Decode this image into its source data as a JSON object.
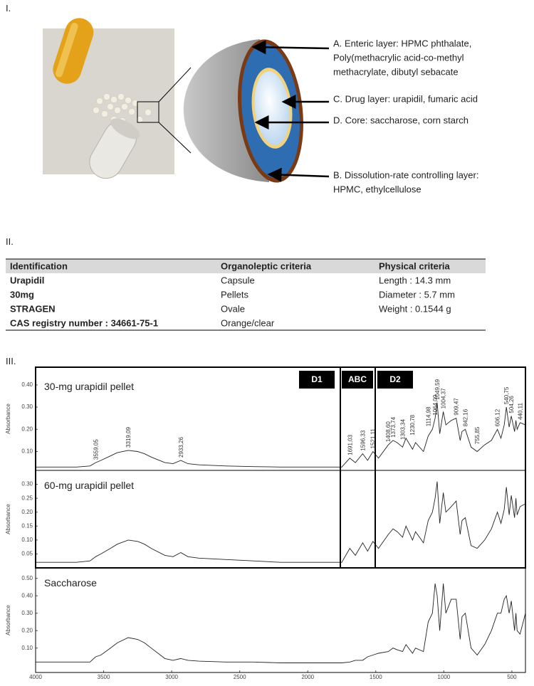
{
  "panel_labels": [
    "I.",
    "II.",
    "III."
  ],
  "diagram": {
    "annotations": [
      {
        "lines": [
          "A. Enteric layer: HPMC phthalate,",
          "Poly(methacrylic acid-co-methyl",
          "methacrylate, dibutyl sebacate"
        ]
      },
      {
        "lines": [
          "C. Drug layer: urapidil, fumaric acid"
        ]
      },
      {
        "lines": [
          "D. Core: saccharose, corn starch"
        ]
      },
      {
        "lines": [
          "B. Dissolution-rate controlling layer:",
          "HPMC, ethylcellulose"
        ]
      }
    ]
  },
  "table": {
    "header": [
      "Identification",
      "Organoleptic criteria",
      "Physical criteria"
    ],
    "rows": [
      [
        "Urapidil",
        "Capsule",
        "Length : 14.3 mm"
      ],
      [
        "30mg",
        "Pellets",
        "Diameter : 5.7 mm"
      ],
      [
        "STRAGEN",
        "Ovale",
        "Weight : 0.1544 g"
      ],
      [
        "CAS registry number : 34661-75-1",
        "Orange/clear"
      ]
    ]
  },
  "regions": [
    "D1",
    "ABC",
    "D2"
  ],
  "chart_data": [
    {
      "type": "line",
      "title": "30-mg urapidil pellet",
      "ylabel": "Absorbance",
      "color": "#222222",
      "x": [
        4000,
        3700,
        3600,
        3559,
        3520,
        3450,
        3400,
        3319,
        3250,
        3200,
        3150,
        3050,
        2990,
        2933,
        2880,
        2800,
        2600,
        2400,
        2200,
        2100,
        2000,
        1800,
        1750,
        1691,
        1650,
        1596,
        1560,
        1521,
        1480,
        1408,
        1373,
        1343,
        1303,
        1278,
        1230,
        1208,
        1150,
        1115,
        1084,
        1064,
        1049,
        1030,
        1004,
        985,
        945,
        909,
        880,
        866,
        842,
        800,
        755,
        700,
        650,
        606,
        580,
        556,
        540,
        520,
        504,
        480,
        470,
        461,
        440,
        400
      ],
      "values": [
        0.03,
        0.03,
        0.035,
        0.05,
        0.06,
        0.08,
        0.095,
        0.105,
        0.1,
        0.09,
        0.075,
        0.05,
        0.045,
        0.06,
        0.045,
        0.04,
        0.035,
        0.032,
        0.03,
        0.03,
        0.03,
        0.03,
        0.03,
        0.07,
        0.05,
        0.09,
        0.06,
        0.1,
        0.07,
        0.13,
        0.15,
        0.14,
        0.12,
        0.16,
        0.11,
        0.14,
        0.1,
        0.17,
        0.2,
        0.25,
        0.32,
        0.18,
        0.28,
        0.22,
        0.24,
        0.25,
        0.15,
        0.19,
        0.2,
        0.12,
        0.1,
        0.13,
        0.15,
        0.2,
        0.16,
        0.22,
        0.3,
        0.21,
        0.26,
        0.19,
        0.24,
        0.2,
        0.23,
        0.22
      ],
      "xlim": [
        4000,
        400
      ],
      "ylim": [
        0.015,
        0.48
      ],
      "yticks": [
        {
          "value": 0.1,
          "label": "0.10"
        },
        {
          "value": 0.2,
          "label": "0.20"
        },
        {
          "value": 0.3,
          "label": "0.30"
        },
        {
          "value": 0.4,
          "label": "0.40"
        }
      ],
      "peak_labels": [
        {
          "value": 3559.05,
          "label": "3559,05"
        },
        {
          "value": 3319.09,
          "label": "3319,09"
        },
        {
          "value": 2933.26,
          "label": "2933,26"
        },
        {
          "value": 1691.03,
          "label": "1691,03"
        },
        {
          "value": 1596.33,
          "label": "1596,33"
        },
        {
          "value": 1521.11,
          "label": "1521,11"
        },
        {
          "value": 1408.6,
          "label": "1408,60"
        },
        {
          "value": 1373.74,
          "label": "1373,74"
        },
        {
          "value": 1303.34,
          "label": "1303,34"
        },
        {
          "value": 1230.78,
          "label": "1230,78"
        },
        {
          "value": 1114.98,
          "label": "1114,98"
        },
        {
          "value": 1064.09,
          "label": "1064,09"
        },
        {
          "value": 1049.59,
          "label": "1049,59"
        },
        {
          "value": 1004.37,
          "label": "1004,37"
        },
        {
          "value": 909.47,
          "label": "909,47"
        },
        {
          "value": 842.16,
          "label": "842,16"
        },
        {
          "value": 755.85,
          "label": "755,85"
        },
        {
          "value": 606.12,
          "label": "606,12"
        },
        {
          "value": 540.75,
          "label": "540,75"
        },
        {
          "value": 504.26,
          "label": "504,26"
        },
        {
          "value": 440.11,
          "label": "440,11"
        }
      ]
    },
    {
      "type": "line",
      "title": "60-mg urapidil pellet",
      "ylabel": "Absorbance",
      "color": "#222222",
      "x": [
        4000,
        3700,
        3600,
        3559,
        3520,
        3450,
        3400,
        3319,
        3250,
        3200,
        3150,
        3050,
        2990,
        2933,
        2880,
        2800,
        2600,
        2400,
        2200,
        2100,
        2000,
        1800,
        1750,
        1691,
        1650,
        1596,
        1560,
        1521,
        1480,
        1408,
        1373,
        1343,
        1303,
        1278,
        1230,
        1208,
        1150,
        1115,
        1084,
        1064,
        1049,
        1030,
        1004,
        985,
        945,
        909,
        880,
        866,
        842,
        800,
        755,
        700,
        650,
        606,
        580,
        556,
        540,
        520,
        504,
        480,
        470,
        461,
        440,
        400
      ],
      "values": [
        0.02,
        0.02,
        0.025,
        0.04,
        0.05,
        0.07,
        0.085,
        0.1,
        0.095,
        0.085,
        0.07,
        0.045,
        0.04,
        0.055,
        0.04,
        0.035,
        0.03,
        0.025,
        0.02,
        0.02,
        0.02,
        0.02,
        0.02,
        0.07,
        0.045,
        0.09,
        0.06,
        0.095,
        0.07,
        0.12,
        0.14,
        0.13,
        0.11,
        0.15,
        0.1,
        0.13,
        0.09,
        0.17,
        0.2,
        0.25,
        0.31,
        0.16,
        0.27,
        0.2,
        0.22,
        0.24,
        0.12,
        0.17,
        0.18,
        0.08,
        0.07,
        0.1,
        0.14,
        0.2,
        0.16,
        0.21,
        0.29,
        0.19,
        0.26,
        0.18,
        0.25,
        0.19,
        0.22,
        0.23
      ],
      "xlim": [
        4000,
        400
      ],
      "ylim": [
        0,
        0.35
      ],
      "yticks": [
        0.05,
        {
          "value": 0.1,
          "label": "0.10"
        },
        0.15,
        {
          "value": 0.2,
          "label": "0.20"
        },
        0.25,
        {
          "value": 0.3,
          "label": "0.30"
        }
      ]
    },
    {
      "type": "line",
      "title": "Saccharose",
      "ylabel": "Absorbance",
      "color": "#222222",
      "x": [
        4000,
        3700,
        3600,
        3559,
        3520,
        3450,
        3400,
        3319,
        3250,
        3200,
        3150,
        3050,
        2990,
        2933,
        2880,
        2800,
        2600,
        2400,
        2200,
        2100,
        2000,
        1800,
        1750,
        1691,
        1650,
        1596,
        1560,
        1521,
        1480,
        1408,
        1373,
        1343,
        1303,
        1278,
        1230,
        1208,
        1150,
        1115,
        1084,
        1064,
        1049,
        1030,
        1004,
        985,
        945,
        909,
        880,
        866,
        842,
        800,
        755,
        700,
        650,
        606,
        580,
        556,
        540,
        520,
        504,
        480,
        470,
        461,
        440,
        400
      ],
      "values": [
        0.02,
        0.02,
        0.02,
        0.05,
        0.06,
        0.1,
        0.13,
        0.16,
        0.15,
        0.13,
        0.1,
        0.04,
        0.03,
        0.04,
        0.03,
        0.025,
        0.02,
        0.02,
        0.015,
        0.015,
        0.015,
        0.015,
        0.015,
        0.02,
        0.03,
        0.03,
        0.05,
        0.06,
        0.07,
        0.08,
        0.1,
        0.09,
        0.08,
        0.12,
        0.07,
        0.1,
        0.08,
        0.25,
        0.3,
        0.47,
        0.4,
        0.2,
        0.47,
        0.3,
        0.38,
        0.38,
        0.15,
        0.28,
        0.3,
        0.1,
        0.06,
        0.12,
        0.2,
        0.3,
        0.3,
        0.38,
        0.4,
        0.3,
        0.37,
        0.2,
        0.3,
        0.2,
        0.18,
        0.3
      ],
      "xlim": [
        4000,
        400
      ],
      "ylim": [
        -0.04,
        0.56
      ],
      "yticks": [
        {
          "value": 0.1,
          "label": "0.10"
        },
        {
          "value": 0.2,
          "label": "0.20"
        },
        {
          "value": 0.3,
          "label": "0.30"
        },
        {
          "value": 0.4,
          "label": "0.40"
        },
        {
          "value": 0.5,
          "label": "0.50"
        }
      ],
      "xticks": [
        4000,
        3500,
        3000,
        2500,
        2000,
        1500,
        1000,
        500
      ]
    }
  ]
}
